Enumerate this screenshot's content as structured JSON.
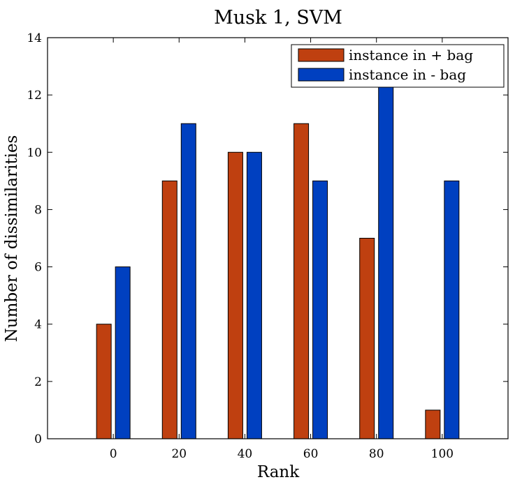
{
  "chart_data": {
    "type": "bar",
    "title": "Musk 1, SVM",
    "xlabel": "Rank",
    "ylabel": "Number of dissimilarities",
    "categories": [
      "0",
      "20",
      "40",
      "60",
      "80",
      "100"
    ],
    "series": [
      {
        "name": "instance in + bag",
        "color": "#bf4010",
        "values": [
          4,
          9,
          10,
          11,
          7,
          1
        ]
      },
      {
        "name": "instance in - bag",
        "color": "#0040c0",
        "values": [
          6,
          11,
          10,
          9,
          12.5,
          9
        ]
      }
    ],
    "ylim": [
      0,
      14
    ],
    "yticks": [
      0,
      2,
      4,
      6,
      8,
      10,
      12,
      14
    ],
    "xlim": [
      -20,
      120
    ],
    "grid": false,
    "legend": "top-right"
  }
}
